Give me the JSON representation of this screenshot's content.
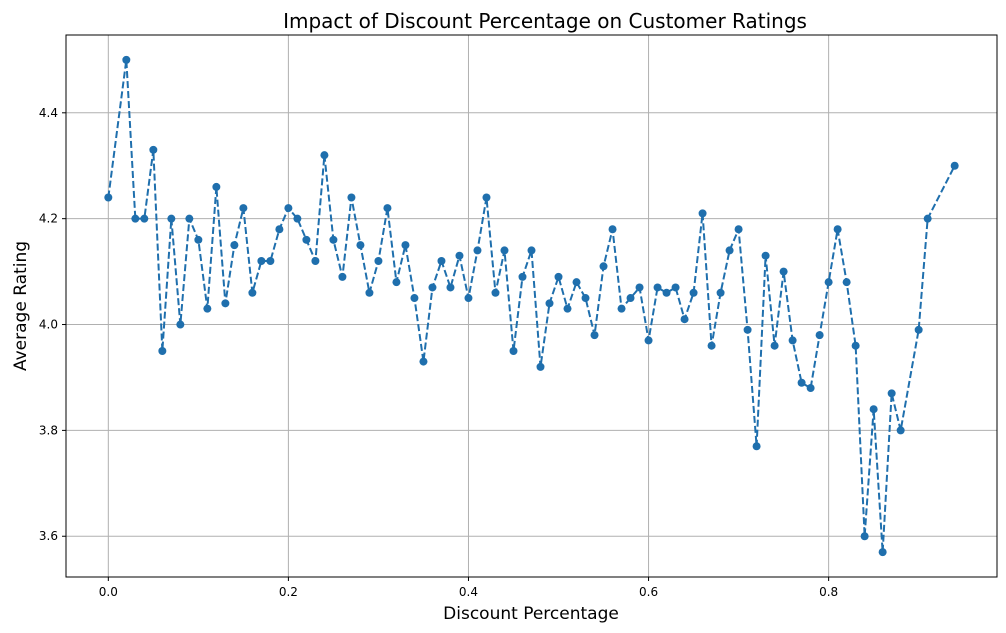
{
  "chart_data": {
    "type": "line",
    "title": "Impact of Discount Percentage on Customer Ratings",
    "xlabel": "Discount Percentage",
    "ylabel": "Average Rating",
    "xlim": [
      -0.047,
      0.987
    ],
    "ylim": [
      3.523,
      4.547
    ],
    "xticks": [
      0.0,
      0.2,
      0.4,
      0.6,
      0.8
    ],
    "xtick_labels": [
      "0.0",
      "0.2",
      "0.4",
      "0.6",
      "0.8"
    ],
    "yticks": [
      3.6,
      3.8,
      4.0,
      4.2,
      4.4
    ],
    "ytick_labels": [
      "3.6",
      "3.8",
      "4.0",
      "4.2",
      "4.4"
    ],
    "grid": true,
    "line_style": "dashed",
    "marker": "circle",
    "color": "#1f6fad",
    "x": [
      0.0,
      0.02,
      0.03,
      0.04,
      0.05,
      0.06,
      0.07,
      0.08,
      0.09,
      0.1,
      0.11,
      0.12,
      0.13,
      0.14,
      0.15,
      0.16,
      0.17,
      0.18,
      0.19,
      0.2,
      0.21,
      0.22,
      0.23,
      0.24,
      0.25,
      0.26,
      0.27,
      0.28,
      0.29,
      0.3,
      0.31,
      0.32,
      0.33,
      0.34,
      0.35,
      0.36,
      0.37,
      0.38,
      0.39,
      0.4,
      0.41,
      0.42,
      0.43,
      0.44,
      0.45,
      0.46,
      0.47,
      0.48,
      0.49,
      0.5,
      0.51,
      0.52,
      0.53,
      0.54,
      0.55,
      0.56,
      0.57,
      0.58,
      0.59,
      0.6,
      0.61,
      0.62,
      0.63,
      0.64,
      0.65,
      0.66,
      0.67,
      0.68,
      0.69,
      0.7,
      0.71,
      0.72,
      0.73,
      0.74,
      0.75,
      0.76,
      0.77,
      0.78,
      0.79,
      0.8,
      0.81,
      0.82,
      0.83,
      0.84,
      0.85,
      0.86,
      0.87,
      0.88,
      0.9,
      0.91,
      0.94
    ],
    "y": [
      4.24,
      4.5,
      4.2,
      4.2,
      4.33,
      3.95,
      4.2,
      4.0,
      4.2,
      4.16,
      4.03,
      4.26,
      4.04,
      4.15,
      4.22,
      4.06,
      4.12,
      4.12,
      4.18,
      4.22,
      4.2,
      4.16,
      4.12,
      4.32,
      4.16,
      4.09,
      4.24,
      4.15,
      4.06,
      4.12,
      4.22,
      4.08,
      4.15,
      4.05,
      3.93,
      4.07,
      4.12,
      4.07,
      4.13,
      4.05,
      4.14,
      4.24,
      4.06,
      4.14,
      3.95,
      4.09,
      4.14,
      3.92,
      4.04,
      4.09,
      4.03,
      4.08,
      4.05,
      3.98,
      4.11,
      4.18,
      4.03,
      4.05,
      4.07,
      3.97,
      4.07,
      4.06,
      4.07,
      4.01,
      4.06,
      4.21,
      3.96,
      4.06,
      4.14,
      4.18,
      3.99,
      3.77,
      4.13,
      3.96,
      4.1,
      3.97,
      3.89,
      3.88,
      3.98,
      4.08,
      4.18,
      4.08,
      3.96,
      3.6,
      3.84,
      3.57,
      3.87,
      3.8,
      3.99,
      4.2,
      4.3
    ]
  }
}
